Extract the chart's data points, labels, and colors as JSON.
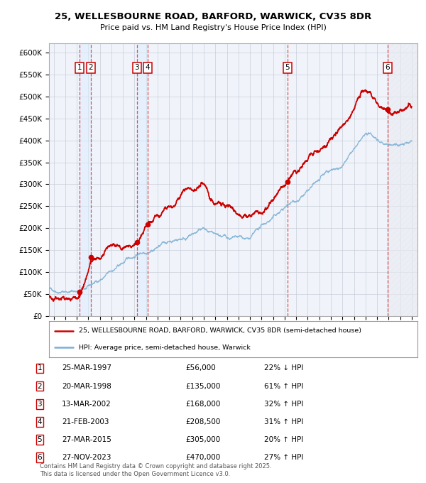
{
  "title_line1": "25, WELLESBOURNE ROAD, BARFORD, WARWICK, CV35 8DR",
  "title_line2": "Price paid vs. HM Land Registry's House Price Index (HPI)",
  "xlim_min": 1994.6,
  "xlim_max": 2026.5,
  "ylim_min": 0,
  "ylim_max": 620000,
  "yticks": [
    0,
    50000,
    100000,
    150000,
    200000,
    250000,
    300000,
    350000,
    400000,
    450000,
    500000,
    550000,
    600000
  ],
  "ytick_labels": [
    "£0",
    "£50K",
    "£100K",
    "£150K",
    "£200K",
    "£250K",
    "£300K",
    "£350K",
    "£400K",
    "£450K",
    "£500K",
    "£550K",
    "£600K"
  ],
  "xticks": [
    1995,
    1996,
    1997,
    1998,
    1999,
    2000,
    2001,
    2002,
    2003,
    2004,
    2005,
    2006,
    2007,
    2008,
    2009,
    2010,
    2011,
    2012,
    2013,
    2014,
    2015,
    2016,
    2017,
    2018,
    2019,
    2020,
    2021,
    2022,
    2023,
    2024,
    2025,
    2026
  ],
  "sale_dates_decimal": [
    1997.22,
    1998.22,
    2002.2,
    2003.13,
    2015.23,
    2023.9
  ],
  "sale_prices": [
    56000,
    135000,
    168000,
    208500,
    305000,
    470000
  ],
  "sale_labels": [
    "1",
    "2",
    "3",
    "4",
    "5",
    "6"
  ],
  "red_line_color": "#cc0000",
  "blue_line_color": "#7bafd4",
  "vline_color": "#dd3333",
  "vband_color": "#ddeeff",
  "legend_label_red": "25, WELLESBOURNE ROAD, BARFORD, WARWICK, CV35 8DR (semi-detached house)",
  "legend_label_blue": "HPI: Average price, semi-detached house, Warwick",
  "table_entries": [
    {
      "num": "1",
      "date": "25-MAR-1997",
      "price": "£56,000",
      "change": "22% ↓ HPI"
    },
    {
      "num": "2",
      "date": "20-MAR-1998",
      "price": "£135,000",
      "change": "61% ↑ HPI"
    },
    {
      "num": "3",
      "date": "13-MAR-2002",
      "price": "£168,000",
      "change": "32% ↑ HPI"
    },
    {
      "num": "4",
      "date": "21-FEB-2003",
      "price": "£208,500",
      "change": "31% ↑ HPI"
    },
    {
      "num": "5",
      "date": "27-MAR-2015",
      "price": "£305,000",
      "change": "20% ↑ HPI"
    },
    {
      "num": "6",
      "date": "27-NOV-2023",
      "price": "£470,000",
      "change": "27% ↑ HPI"
    }
  ],
  "footer_text": "Contains HM Land Registry data © Crown copyright and database right 2025.\nThis data is licensed under the Open Government Licence v3.0.",
  "background_color": "#ffffff"
}
